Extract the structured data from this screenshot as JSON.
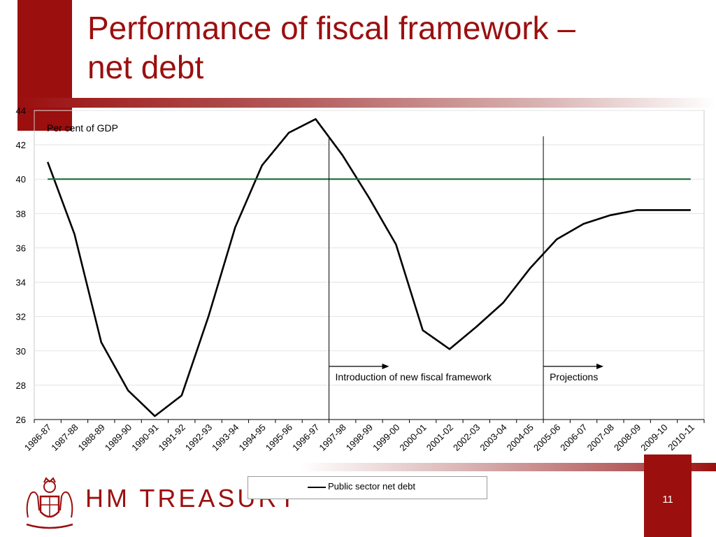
{
  "slide": {
    "title_line1": "Performance of fiscal framework –",
    "title_line2": "net debt",
    "page_number": "11",
    "logo_text": "HM TREASURY"
  },
  "chart_data": {
    "type": "line",
    "ylabel": "Per cent of GDP",
    "ylim": [
      26,
      44
    ],
    "y_ticks": [
      26,
      28,
      30,
      32,
      34,
      36,
      38,
      40,
      42,
      44
    ],
    "categories": [
      "1986-87",
      "1987-88",
      "1988-89",
      "1989-90",
      "1990-91",
      "1991-92",
      "1992-93",
      "1993-94",
      "1994-95",
      "1995-96",
      "1996-97",
      "1997-98",
      "1998-99",
      "1999-00",
      "2000-01",
      "2001-02",
      "2002-03",
      "2003-04",
      "2004-05",
      "2005-06",
      "2006-07",
      "2007-08",
      "2008-09",
      "2009-10",
      "2010-11"
    ],
    "series": [
      {
        "name": "Public sector net debt",
        "color": "#000000",
        "values": [
          41.0,
          36.8,
          30.5,
          27.7,
          26.2,
          27.4,
          32.0,
          37.2,
          40.8,
          42.7,
          43.5,
          41.4,
          38.9,
          36.2,
          31.2,
          30.1,
          31.4,
          32.8,
          34.8,
          36.5,
          37.4,
          37.9,
          38.2,
          38.2,
          38.2
        ]
      },
      {
        "color": "#1d6b3a",
        "values": [
          40,
          40,
          40,
          40,
          40,
          40,
          40,
          40,
          40,
          40,
          40,
          40,
          40,
          40,
          40,
          40,
          40,
          40,
          40,
          40,
          40,
          40,
          40,
          40,
          40
        ]
      }
    ],
    "annotations": [
      {
        "text": "Introduction of new fiscal framework",
        "at_category": "1997-98"
      },
      {
        "text": "Projections",
        "at_category": "2005-06"
      }
    ],
    "grid": true,
    "legend_position": "bottom"
  }
}
